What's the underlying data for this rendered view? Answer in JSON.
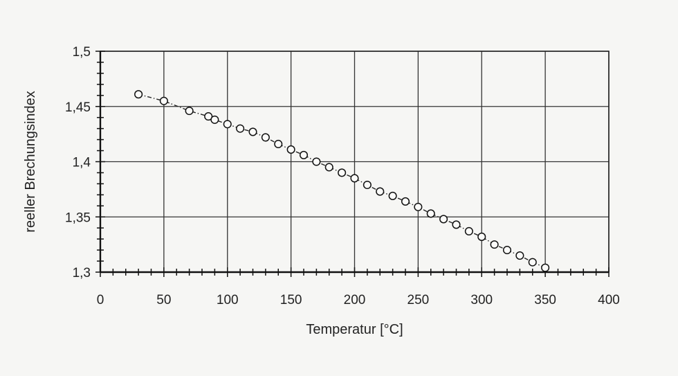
{
  "chart_data": {
    "type": "line",
    "title": "",
    "xlabel": "Temperatur [°C]",
    "ylabel": "reeller Brechungsindex",
    "xlim": [
      0,
      400
    ],
    "ylim": [
      1.3,
      1.5
    ],
    "x_ticks": [
      0,
      50,
      100,
      150,
      200,
      250,
      300,
      350,
      400
    ],
    "x_tick_labels": [
      "0",
      "50",
      "100",
      "150",
      "200",
      "250",
      "300",
      "350",
      "400"
    ],
    "y_ticks": [
      1.3,
      1.35,
      1.4,
      1.45,
      1.5
    ],
    "y_tick_labels": [
      "1,3",
      "1,35",
      "1,4",
      "1,45",
      "1,5"
    ],
    "grid": true,
    "legend": "none",
    "line_color": "#222222",
    "marker": "open-circle",
    "series": [
      {
        "x": [
          30,
          50,
          70,
          85,
          90,
          100,
          110,
          120,
          130,
          140,
          150,
          160,
          170,
          180,
          190,
          200,
          210,
          220,
          230,
          240,
          250,
          260,
          270,
          280,
          290,
          300,
          310,
          320,
          330,
          340,
          350
        ],
        "y": [
          1.461,
          1.455,
          1.446,
          1.441,
          1.438,
          1.434,
          1.43,
          1.427,
          1.422,
          1.416,
          1.411,
          1.406,
          1.4,
          1.395,
          1.39,
          1.385,
          1.379,
          1.373,
          1.369,
          1.364,
          1.359,
          1.353,
          1.348,
          1.343,
          1.337,
          1.332,
          1.325,
          1.32,
          1.315,
          1.309,
          1.304
        ]
      }
    ]
  }
}
